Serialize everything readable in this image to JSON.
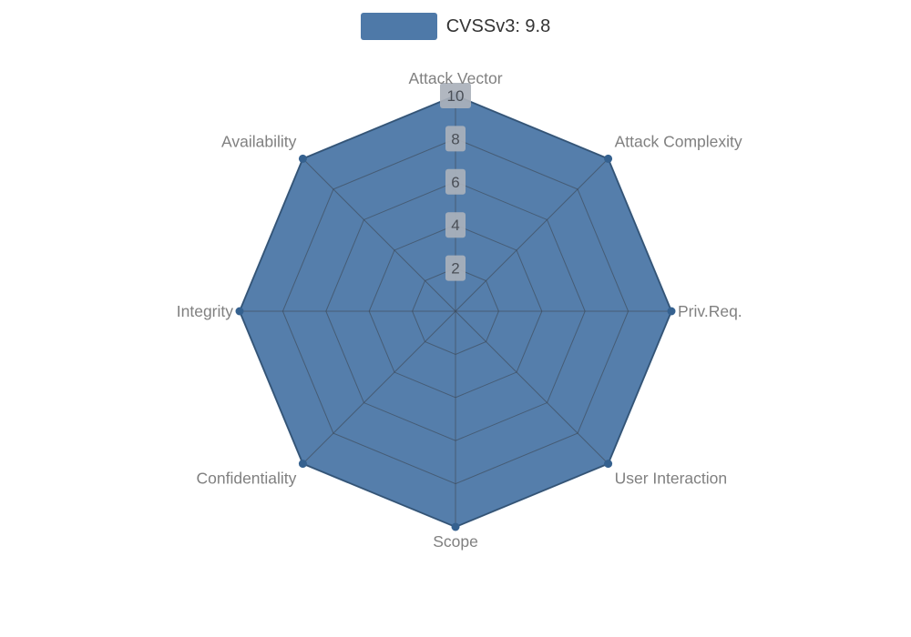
{
  "legend": {
    "label": "CVSSv3: 9.8"
  },
  "chart_data": {
    "type": "radar",
    "title": "CVSSv3: 9.8",
    "categories": [
      "Attack Vector",
      "Attack Complexity",
      "Priv.Req.",
      "User Interaction",
      "Scope",
      "Confidentiality",
      "Integrity",
      "Availability"
    ],
    "series": [
      {
        "name": "CVSSv3: 9.8",
        "values": [
          10,
          10,
          10,
          10,
          10,
          10,
          10,
          10
        ]
      }
    ],
    "rmin": 0,
    "rmax": 10,
    "tick_interval": 2,
    "tick_labels": [
      "2",
      "4",
      "6",
      "8",
      "10"
    ],
    "grid": true,
    "legend_position": "top-center",
    "colors": {
      "solid": "#4e79a8",
      "fill": "#4e79a8",
      "stroke": "#35618f",
      "grid_line": "rgba(60,70,82,0.6)",
      "axis_label": "#808080",
      "tick_box": "#aab1bb",
      "tick_text": "#4a4f57",
      "legend_text": "#333333"
    }
  }
}
